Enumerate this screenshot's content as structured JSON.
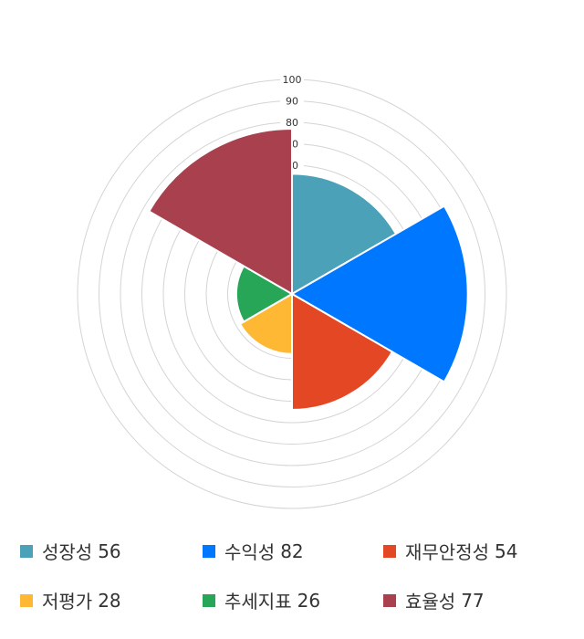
{
  "chart_data": {
    "type": "polar-area",
    "categories": [
      "성장성",
      "수익성",
      "재무안정성",
      "저평가",
      "추세지표",
      "효율성"
    ],
    "values": [
      56,
      82,
      54,
      28,
      26,
      77
    ],
    "colors": [
      "#4aa1b8",
      "#0077ff",
      "#e34724",
      "#ffb833",
      "#27a658",
      "#a8404e"
    ],
    "rlim": [
      0,
      100
    ],
    "ticks": [
      10,
      20,
      30,
      40,
      50,
      60,
      70,
      80,
      90,
      100
    ],
    "tick_labels_shown": [
      "60",
      "70",
      "80",
      "90",
      "100"
    ],
    "grid": true,
    "legend_position": "bottom"
  }
}
